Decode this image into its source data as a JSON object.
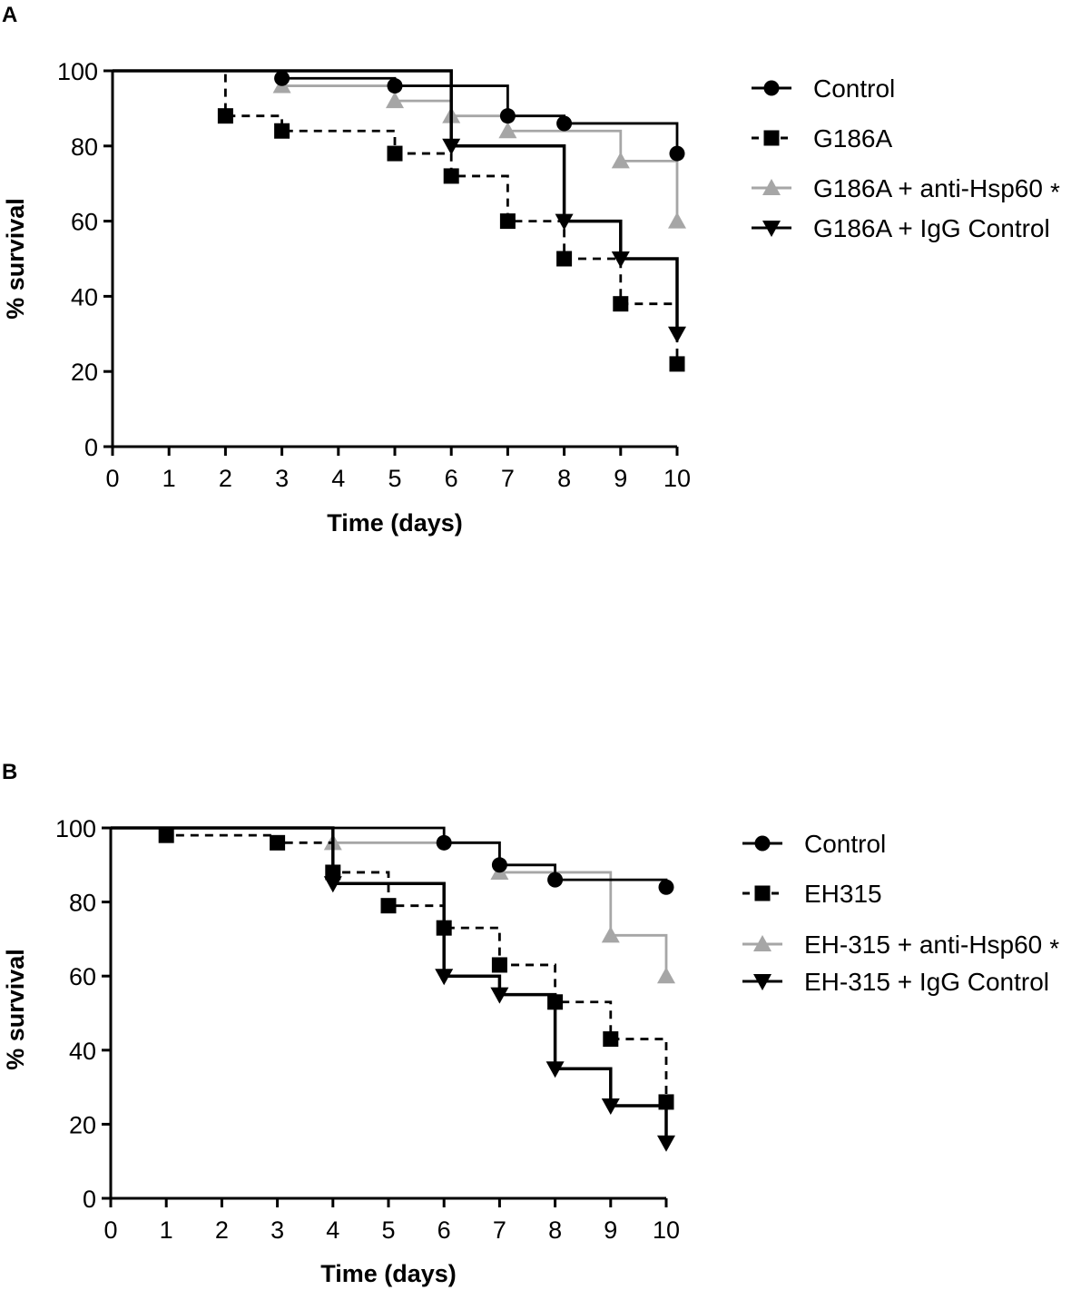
{
  "chart_data": [
    {
      "panel": "A",
      "type": "line",
      "subtype": "kaplan-meier",
      "xlabel": "Time (days)",
      "ylabel": "% survival",
      "xlim": [
        0,
        10
      ],
      "ylim": [
        0,
        100
      ],
      "xticks": [
        0,
        1,
        2,
        3,
        4,
        5,
        6,
        7,
        8,
        9,
        10
      ],
      "yticks": [
        0,
        20,
        40,
        60,
        80,
        100
      ],
      "legend_position": "right",
      "series": [
        {
          "name": "Control",
          "marker": "circle",
          "color": "#000000",
          "dash": false,
          "asterisk": false,
          "x": [
            0,
            3,
            5,
            7,
            8,
            10
          ],
          "y": [
            100,
            98,
            96,
            88,
            86,
            78
          ]
        },
        {
          "name": "G186A",
          "marker": "square",
          "color": "#000000",
          "dash": true,
          "asterisk": false,
          "x": [
            0,
            2,
            3,
            5,
            6,
            7,
            8,
            9,
            10
          ],
          "y": [
            100,
            88,
            84,
            78,
            72,
            60,
            50,
            38,
            22
          ]
        },
        {
          "name": "G186A + anti-Hsp60",
          "marker": "triangle-up",
          "color": "#a6a6a6",
          "dash": false,
          "asterisk": true,
          "x": [
            0,
            3,
            5,
            6,
            7,
            9,
            10
          ],
          "y": [
            100,
            96,
            92,
            88,
            84,
            76,
            60
          ]
        },
        {
          "name": "G186A + IgG Control",
          "marker": "triangle-down",
          "color": "#000000",
          "dash": false,
          "asterisk": false,
          "x": [
            0,
            6,
            8,
            9,
            10
          ],
          "y": [
            100,
            80,
            60,
            50,
            30
          ]
        }
      ]
    },
    {
      "panel": "B",
      "type": "line",
      "subtype": "kaplan-meier",
      "xlabel": "Time (days)",
      "ylabel": "% survival",
      "xlim": [
        0,
        10
      ],
      "ylim": [
        0,
        100
      ],
      "xticks": [
        0,
        1,
        2,
        3,
        4,
        5,
        6,
        7,
        8,
        9,
        10
      ],
      "yticks": [
        0,
        20,
        40,
        60,
        80,
        100
      ],
      "legend_position": "right",
      "series": [
        {
          "name": "Control",
          "marker": "circle",
          "color": "#000000",
          "dash": false,
          "asterisk": false,
          "x": [
            0,
            6,
            7,
            8,
            10
          ],
          "y": [
            100,
            96,
            90,
            86,
            84
          ]
        },
        {
          "name": "EH315",
          "marker": "square",
          "color": "#000000",
          "dash": true,
          "asterisk": false,
          "x": [
            0,
            1,
            3,
            4,
            5,
            6,
            7,
            8,
            9,
            10
          ],
          "y": [
            100,
            98,
            96,
            88,
            79,
            73,
            63,
            53,
            43,
            26
          ]
        },
        {
          "name": "EH-315 + anti-Hsp60",
          "marker": "triangle-up",
          "color": "#a6a6a6",
          "dash": false,
          "asterisk": true,
          "x": [
            0,
            4,
            7,
            9,
            10
          ],
          "y": [
            100,
            96,
            88,
            71,
            60
          ]
        },
        {
          "name": "EH-315 + IgG Control",
          "marker": "triangle-down",
          "color": "#000000",
          "dash": false,
          "asterisk": false,
          "x": [
            0,
            4,
            6,
            7,
            8,
            9,
            10
          ],
          "y": [
            100,
            85,
            60,
            55,
            35,
            25,
            15
          ]
        }
      ]
    }
  ]
}
